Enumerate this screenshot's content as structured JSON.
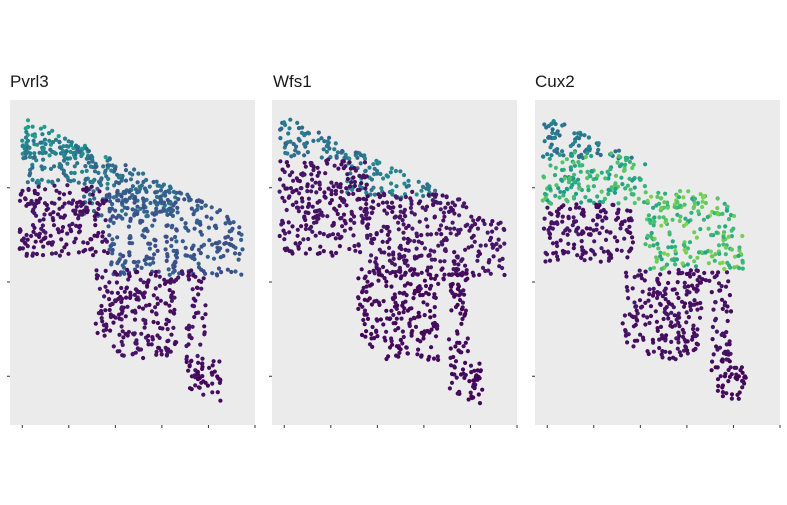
{
  "chart_data": [
    {
      "type": "scatter",
      "title": "Pvrl3",
      "xlabel": "",
      "ylabel": "",
      "color_scale": "viridis",
      "background": "#ebebeb",
      "grid": false,
      "point_groups": [
        {
          "x": [
            0.03,
            0.4
          ],
          "y": [
            0.05,
            0.18
          ],
          "level": 0.55
        },
        {
          "x": [
            0.05,
            0.5
          ],
          "y": [
            0.12,
            0.26
          ],
          "level": 0.45
        },
        {
          "x": [
            0.3,
            0.68
          ],
          "y": [
            0.16,
            0.36
          ],
          "level": 0.38
        },
        {
          "x": [
            0.03,
            0.4
          ],
          "y": [
            0.26,
            0.48
          ],
          "level": 0.05
        },
        {
          "x": [
            0.4,
            0.95
          ],
          "y": [
            0.28,
            0.54
          ],
          "level": 0.3
        },
        {
          "x": [
            0.35,
            0.8
          ],
          "y": [
            0.52,
            0.8
          ],
          "level": 0.05
        },
        {
          "x": [
            0.7,
            0.86
          ],
          "y": [
            0.8,
            0.96
          ],
          "level": 0.03
        },
        {
          "x": [
            0.55,
            0.68
          ],
          "y": [
            0.07,
            0.11
          ],
          "level": 0.1
        }
      ]
    },
    {
      "type": "scatter",
      "title": "Wfs1",
      "xlabel": "",
      "ylabel": "",
      "color_scale": "viridis",
      "background": "#ebebeb",
      "grid": false,
      "point_groups": [
        {
          "x": [
            0.03,
            0.4
          ],
          "y": [
            0.05,
            0.18
          ],
          "level": 0.42
        },
        {
          "x": [
            0.3,
            0.7
          ],
          "y": [
            0.16,
            0.3
          ],
          "level": 0.48
        },
        {
          "x": [
            0.03,
            0.4
          ],
          "y": [
            0.18,
            0.48
          ],
          "level": 0.05
        },
        {
          "x": [
            0.4,
            0.95
          ],
          "y": [
            0.28,
            0.54
          ],
          "level": 0.06
        },
        {
          "x": [
            0.35,
            0.8
          ],
          "y": [
            0.52,
            0.8
          ],
          "level": 0.03
        },
        {
          "x": [
            0.7,
            0.86
          ],
          "y": [
            0.8,
            0.96
          ],
          "level": 0.02
        },
        {
          "x": [
            0.55,
            0.68
          ],
          "y": [
            0.07,
            0.11
          ],
          "level": 0.05
        }
      ]
    },
    {
      "type": "scatter",
      "title": "Cux2",
      "xlabel": "",
      "ylabel": "",
      "color_scale": "viridis",
      "background": "#ebebeb",
      "grid": false,
      "point_groups": [
        {
          "x": [
            0.03,
            0.4
          ],
          "y": [
            0.05,
            0.18
          ],
          "level": 0.45
        },
        {
          "x": [
            0.03,
            0.45
          ],
          "y": [
            0.16,
            0.32
          ],
          "level": 0.72
        },
        {
          "x": [
            0.45,
            0.85
          ],
          "y": [
            0.28,
            0.52
          ],
          "level": 0.78
        },
        {
          "x": [
            0.03,
            0.4
          ],
          "y": [
            0.32,
            0.5
          ],
          "level": 0.05
        },
        {
          "x": [
            0.35,
            0.8
          ],
          "y": [
            0.52,
            0.8
          ],
          "level": 0.05
        },
        {
          "x": [
            0.7,
            0.86
          ],
          "y": [
            0.8,
            0.96
          ],
          "level": 0.02
        },
        {
          "x": [
            0.55,
            0.68
          ],
          "y": [
            0.07,
            0.11
          ],
          "level": 0.15
        }
      ]
    }
  ]
}
